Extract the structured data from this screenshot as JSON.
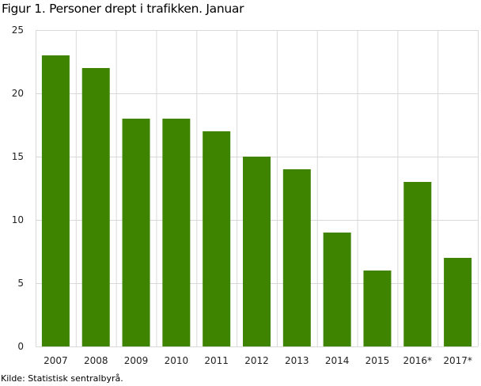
{
  "chart_data": {
    "type": "bar",
    "title": "Figur 1. Personer drept i trafikken. Januar",
    "categories": [
      "2007",
      "2008",
      "2009",
      "2010",
      "2011",
      "2012",
      "2013",
      "2014",
      "2015",
      "2016*",
      "2017*"
    ],
    "values": [
      23,
      22,
      18,
      18,
      17,
      15,
      14,
      9,
      6,
      13,
      7
    ],
    "xlabel": "",
    "ylabel": "",
    "ylim": [
      0,
      25
    ],
    "yticks": [
      0,
      5,
      10,
      15,
      20,
      25
    ],
    "grid": true,
    "bar_color": "#3f8400",
    "grid_color": "#d9d9d9"
  },
  "source": "Kilde: Statistisk sentralbyrå."
}
